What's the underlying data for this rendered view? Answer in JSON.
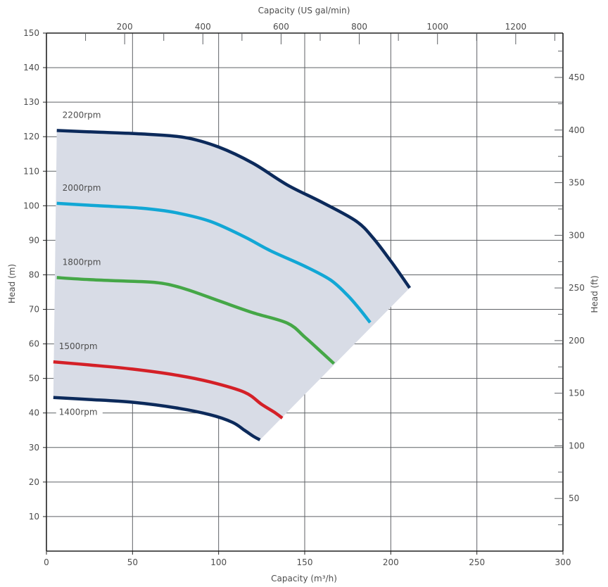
{
  "chart_data": {
    "type": "line",
    "xlabel": "Capacity (m³/h)",
    "ylabel": "Head (m)",
    "x2label": "Capacity (US gal/min)",
    "y2label": "Head (ft)",
    "xlim": [
      0,
      300
    ],
    "ylim": [
      0,
      150
    ],
    "grid": true,
    "x_ticks": [
      "0",
      "50",
      "100",
      "150",
      "200",
      "250",
      "300"
    ],
    "y_ticks": [
      "10",
      "20",
      "30",
      "40",
      "50",
      "60",
      "70",
      "80",
      "90",
      "100",
      "110",
      "120",
      "130",
      "140",
      "150"
    ],
    "x2_ticks": [
      "200",
      "400",
      "600",
      "800",
      "1000",
      "1200"
    ],
    "y2_ticks": [
      "50",
      "100",
      "150",
      "200",
      "250",
      "300",
      "350",
      "400",
      "450"
    ],
    "envelope_color": "#d8dce6",
    "series": [
      {
        "name": "2200rpm",
        "color": "#0c2a5b",
        "x": [
          6,
          30,
          55,
          80,
          100,
          120,
          140,
          160,
          180,
          190,
          200,
          205,
          211
        ],
        "y": [
          121.8,
          121.3,
          120.8,
          119.8,
          117,
          112.3,
          106,
          101,
          95.5,
          90.5,
          84,
          80.5,
          76.2
        ]
      },
      {
        "name": "2000rpm",
        "color": "#12a7d5",
        "x": [
          6,
          30,
          55,
          75,
          95,
          115,
          130,
          150,
          165,
          175,
          182,
          188
        ],
        "y": [
          100.7,
          100,
          99.3,
          98,
          95.5,
          91,
          87,
          82.5,
          78.5,
          74,
          70,
          66.2
        ]
      },
      {
        "name": "1800rpm",
        "color": "#45a747",
        "x": [
          6,
          25,
          45,
          65,
          80,
          100,
          120,
          140,
          150,
          160,
          167
        ],
        "y": [
          79.2,
          78.6,
          78.2,
          77.7,
          76,
          72.5,
          69,
          66,
          62,
          57.5,
          54.3
        ]
      },
      {
        "name": "1500rpm",
        "color": "#d42027",
        "x": [
          4,
          25,
          50,
          75,
          95,
          115,
          125,
          133,
          137
        ],
        "y": [
          54.8,
          53.9,
          52.7,
          51,
          49,
          46,
          42.5,
          40,
          38.5
        ]
      },
      {
        "name": "1400rpm",
        "color": "#0c2a5b",
        "x": [
          4,
          25,
          50,
          75,
          95,
          108,
          115,
          120,
          124
        ],
        "y": [
          44.5,
          43.9,
          43.1,
          41.5,
          39.5,
          37.3,
          35,
          33.3,
          32.2
        ]
      }
    ]
  }
}
